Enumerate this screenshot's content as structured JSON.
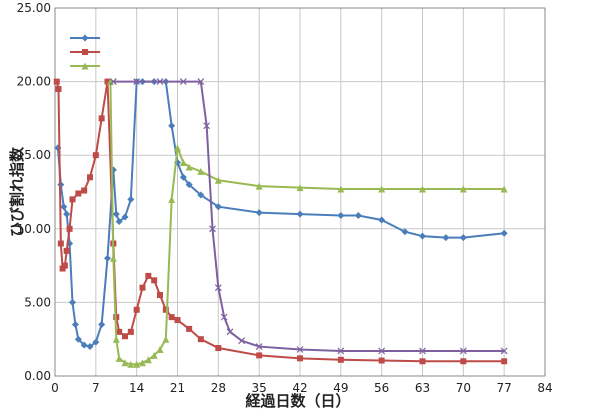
{
  "chart_data": {
    "type": "line",
    "y_label": "ひび割れ指数",
    "x_label": "経過日数（日）",
    "xlim": [
      0,
      84
    ],
    "xticks": [
      0,
      7,
      14,
      21,
      28,
      35,
      42,
      49,
      56,
      63,
      70,
      77,
      84
    ],
    "ylim": [
      0,
      25
    ],
    "yticks": [
      {
        "value": 0,
        "label": "0.00"
      },
      {
        "value": 5,
        "label": "5.00"
      },
      {
        "value": 10,
        "label": "10.00"
      },
      {
        "value": 15,
        "label": "15.00"
      },
      {
        "value": 20,
        "label": "20.00"
      },
      {
        "value": 25,
        "label": "25.00"
      }
    ],
    "grid": true,
    "legend": "top-left",
    "series": [
      {
        "color": "#4a7ebb",
        "marker": "diamond",
        "x": [
          0.5,
          1,
          1.5,
          2,
          2.5,
          3,
          3.5,
          4,
          5,
          6,
          7,
          8,
          9,
          10,
          10.5,
          11,
          12,
          13,
          14,
          15,
          17,
          19,
          20,
          21,
          22,
          23,
          25,
          28,
          35,
          42,
          49,
          52,
          56,
          60,
          63,
          67,
          70,
          77
        ],
        "values": [
          15.5,
          13,
          11.5,
          11,
          9,
          5,
          3.5,
          2.5,
          2.1,
          2,
          2.3,
          3.5,
          8,
          14,
          11,
          10.5,
          10.8,
          12,
          20,
          20,
          20,
          20,
          17,
          14.5,
          13.5,
          13,
          12.3,
          11.5,
          11.1,
          11,
          10.9,
          10.9,
          10.6,
          9.8,
          9.5,
          9.4,
          9.4,
          9.7
        ]
      },
      {
        "color": "#be4b48",
        "marker": "square",
        "x": [
          0.3,
          0.6,
          1,
          1.3,
          1.7,
          2,
          2.5,
          3,
          4,
          5,
          6,
          7,
          8,
          9,
          10,
          10.5,
          11,
          12,
          13,
          14,
          15,
          16,
          17,
          18,
          19,
          20,
          21,
          23,
          25,
          28,
          35,
          42,
          49,
          56,
          63,
          70,
          77
        ],
        "values": [
          20,
          19.5,
          9,
          7.3,
          7.5,
          8.5,
          10,
          12,
          12.4,
          12.6,
          13.5,
          15,
          17.5,
          20,
          9,
          4,
          3,
          2.7,
          3,
          4.5,
          6,
          6.8,
          6.5,
          5.5,
          4.5,
          4,
          3.8,
          3.2,
          2.5,
          1.9,
          1.4,
          1.2,
          1.1,
          1.05,
          1,
          1,
          1
        ]
      },
      {
        "color": "#98b954",
        "marker": "triangle",
        "x": [
          9.5,
          10,
          10.5,
          11,
          12,
          13,
          14,
          15,
          16,
          17,
          18,
          19,
          20,
          21,
          22,
          23,
          25,
          28,
          35,
          42,
          49,
          56,
          63,
          70,
          77
        ],
        "values": [
          20,
          8,
          2.5,
          1.2,
          0.9,
          0.8,
          0.8,
          0.9,
          1.1,
          1.4,
          1.8,
          2.5,
          12,
          15.5,
          14.5,
          14.2,
          13.9,
          13.3,
          12.9,
          12.8,
          12.7,
          12.7,
          12.7,
          12.7,
          12.7
        ]
      },
      {
        "color": "#7d60a0",
        "marker": "x",
        "legend": false,
        "x": [
          10,
          14,
          18,
          22,
          25,
          26,
          27,
          28,
          29,
          30,
          32,
          35,
          42,
          49,
          56,
          63,
          70,
          77
        ],
        "values": [
          20,
          20,
          20,
          20,
          20,
          17,
          10,
          6,
          4,
          3,
          2.4,
          2,
          1.8,
          1.7,
          1.7,
          1.7,
          1.7,
          1.7
        ]
      }
    ]
  }
}
